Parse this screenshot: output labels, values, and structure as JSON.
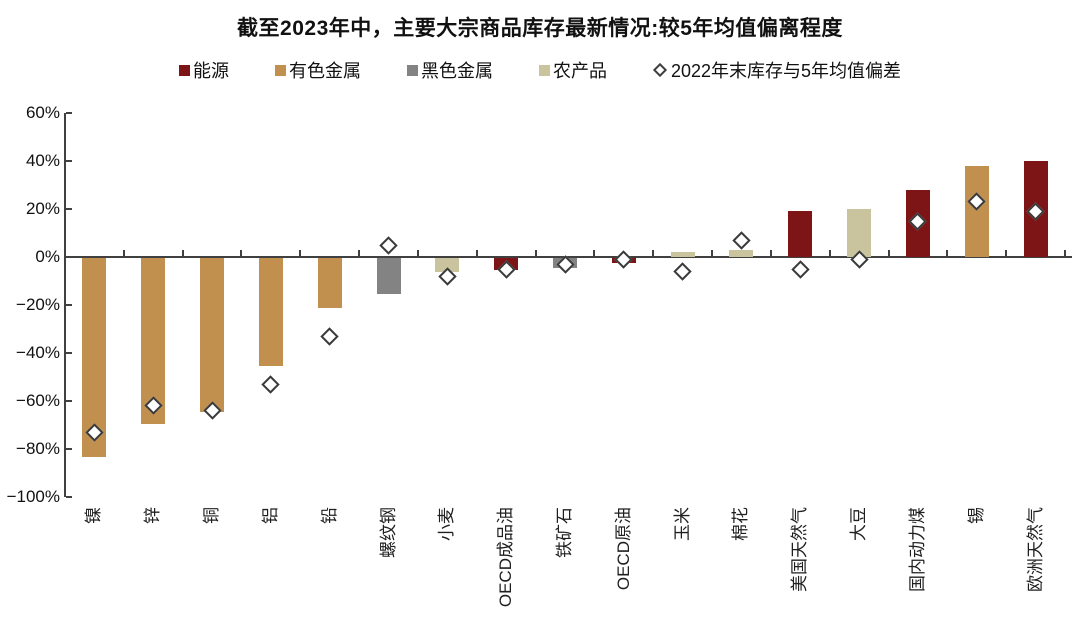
{
  "title": "截至2023年中，主要大宗商品库存最新情况:较5年均值偏离程度",
  "legend": [
    {
      "label": "能源",
      "marker": "square",
      "color": "#7d1416"
    },
    {
      "label": "有色金属",
      "marker": "square",
      "color": "#c1904f"
    },
    {
      "label": "黑色金属",
      "marker": "square",
      "color": "#838383"
    },
    {
      "label": "农产品",
      "marker": "square",
      "color": "#c9c49e"
    },
    {
      "label": "2022年末库存与5年均值偏差",
      "marker": "diamond",
      "color": "#3f3f3f"
    }
  ],
  "colors": {
    "能源": "#7d1416",
    "有色金属": "#c1904f",
    "黑色金属": "#838383",
    "农产品": "#c9c49e",
    "diamond_border": "#3a3a3a",
    "axis": "#404040"
  },
  "chart_data": {
    "type": "bar",
    "title": "截至2023年中，主要大宗商品库存最新情况:较5年均值偏离程度",
    "xlabel": "",
    "ylabel": "",
    "ylim": [
      -100,
      60
    ],
    "grid": false,
    "legend_position": "top",
    "yticks": [
      {
        "label": "60%",
        "value": 60
      },
      {
        "label": "40%",
        "value": 40
      },
      {
        "label": "20%",
        "value": 20
      },
      {
        "label": "0%",
        "value": 0
      },
      {
        "label": "−20%",
        "value": -20
      },
      {
        "label": "−40%",
        "value": -40
      },
      {
        "label": "−60%",
        "value": -60
      },
      {
        "label": "−80%",
        "value": -80
      },
      {
        "label": "−100%",
        "value": -100
      }
    ],
    "categories": [
      "镍",
      "锌",
      "铜",
      "铝",
      "铅",
      "螺纹钢",
      "小麦",
      "OECD成品油",
      "铁矿石",
      "OECD原油",
      "玉米",
      "棉花",
      "美国天然气",
      "大豆",
      "国内动力煤",
      "锡",
      "欧洲天然气"
    ],
    "series": [
      {
        "name": "截至2023年中库存较5年均值偏离程度",
        "render": "bar",
        "values": [
          -83,
          -69,
          -64,
          -45,
          -21,
          -15,
          -6,
          -5,
          -4,
          -2,
          2,
          3,
          19,
          20,
          28,
          38,
          40
        ]
      },
      {
        "name": "2022年末库存与5年均值偏差",
        "render": "diamond",
        "values": [
          -73,
          -62,
          -64,
          -53,
          -33,
          5,
          -8,
          -5,
          -3,
          -1,
          -6,
          7,
          -5,
          -1,
          15,
          23,
          19
        ]
      }
    ],
    "groups": [
      "有色金属",
      "有色金属",
      "有色金属",
      "有色金属",
      "有色金属",
      "黑色金属",
      "农产品",
      "能源",
      "黑色金属",
      "能源",
      "农产品",
      "农产品",
      "能源",
      "农产品",
      "能源",
      "有色金属",
      "能源"
    ]
  }
}
